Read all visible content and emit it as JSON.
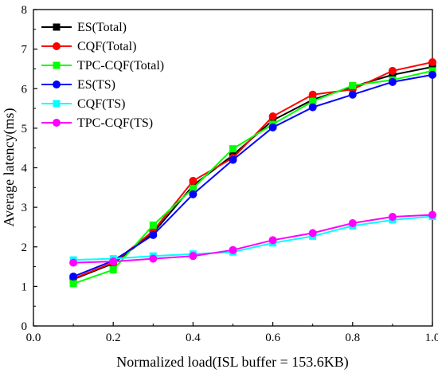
{
  "chart_data": {
    "type": "line",
    "xlabel": "Normalized load(ISL buffer = 153.6KB)",
    "ylabel": "Average latency(ms)",
    "xlim": [
      0.0,
      1.0
    ],
    "ylim": [
      0,
      8
    ],
    "x_ticks": [
      "0.0",
      "0.2",
      "0.4",
      "0.6",
      "0.8",
      "1.0"
    ],
    "y_ticks": [
      "0",
      "1",
      "2",
      "3",
      "4",
      "5",
      "6",
      "7",
      "8"
    ],
    "grid": false,
    "legend_position": "top-left",
    "x": [
      0.1,
      0.2,
      0.3,
      0.4,
      0.5,
      0.6,
      0.7,
      0.8,
      0.9,
      1.0
    ],
    "series": [
      {
        "name": "ES(Total)",
        "color": "#000000",
        "marker": "square",
        "values": [
          1.18,
          1.58,
          2.35,
          3.55,
          4.32,
          5.2,
          5.72,
          6.05,
          6.35,
          6.55
        ]
      },
      {
        "name": "CQF(Total)",
        "color": "#ff0000",
        "marker": "circle",
        "values": [
          1.2,
          1.6,
          2.4,
          3.67,
          4.25,
          5.3,
          5.85,
          5.98,
          6.45,
          6.67
        ]
      },
      {
        "name": "TPC-CQF(Total)",
        "color": "#00ff00",
        "marker": "square",
        "values": [
          1.07,
          1.42,
          2.55,
          3.48,
          4.48,
          5.1,
          5.68,
          6.08,
          6.22,
          6.45
        ]
      },
      {
        "name": "ES(TS)",
        "color": "#0000ff",
        "marker": "circle",
        "values": [
          1.25,
          1.65,
          2.3,
          3.33,
          4.2,
          5.02,
          5.53,
          5.85,
          6.17,
          6.35
        ]
      },
      {
        "name": "CQF(TS)",
        "color": "#00ffff",
        "marker": "square",
        "values": [
          1.67,
          1.7,
          1.77,
          1.82,
          1.87,
          2.1,
          2.27,
          2.53,
          2.68,
          2.77
        ]
      },
      {
        "name": "TPC-CQF(TS)",
        "color": "#ff00ff",
        "marker": "circle",
        "values": [
          1.6,
          1.63,
          1.7,
          1.77,
          1.92,
          2.17,
          2.35,
          2.6,
          2.76,
          2.81
        ]
      }
    ]
  }
}
